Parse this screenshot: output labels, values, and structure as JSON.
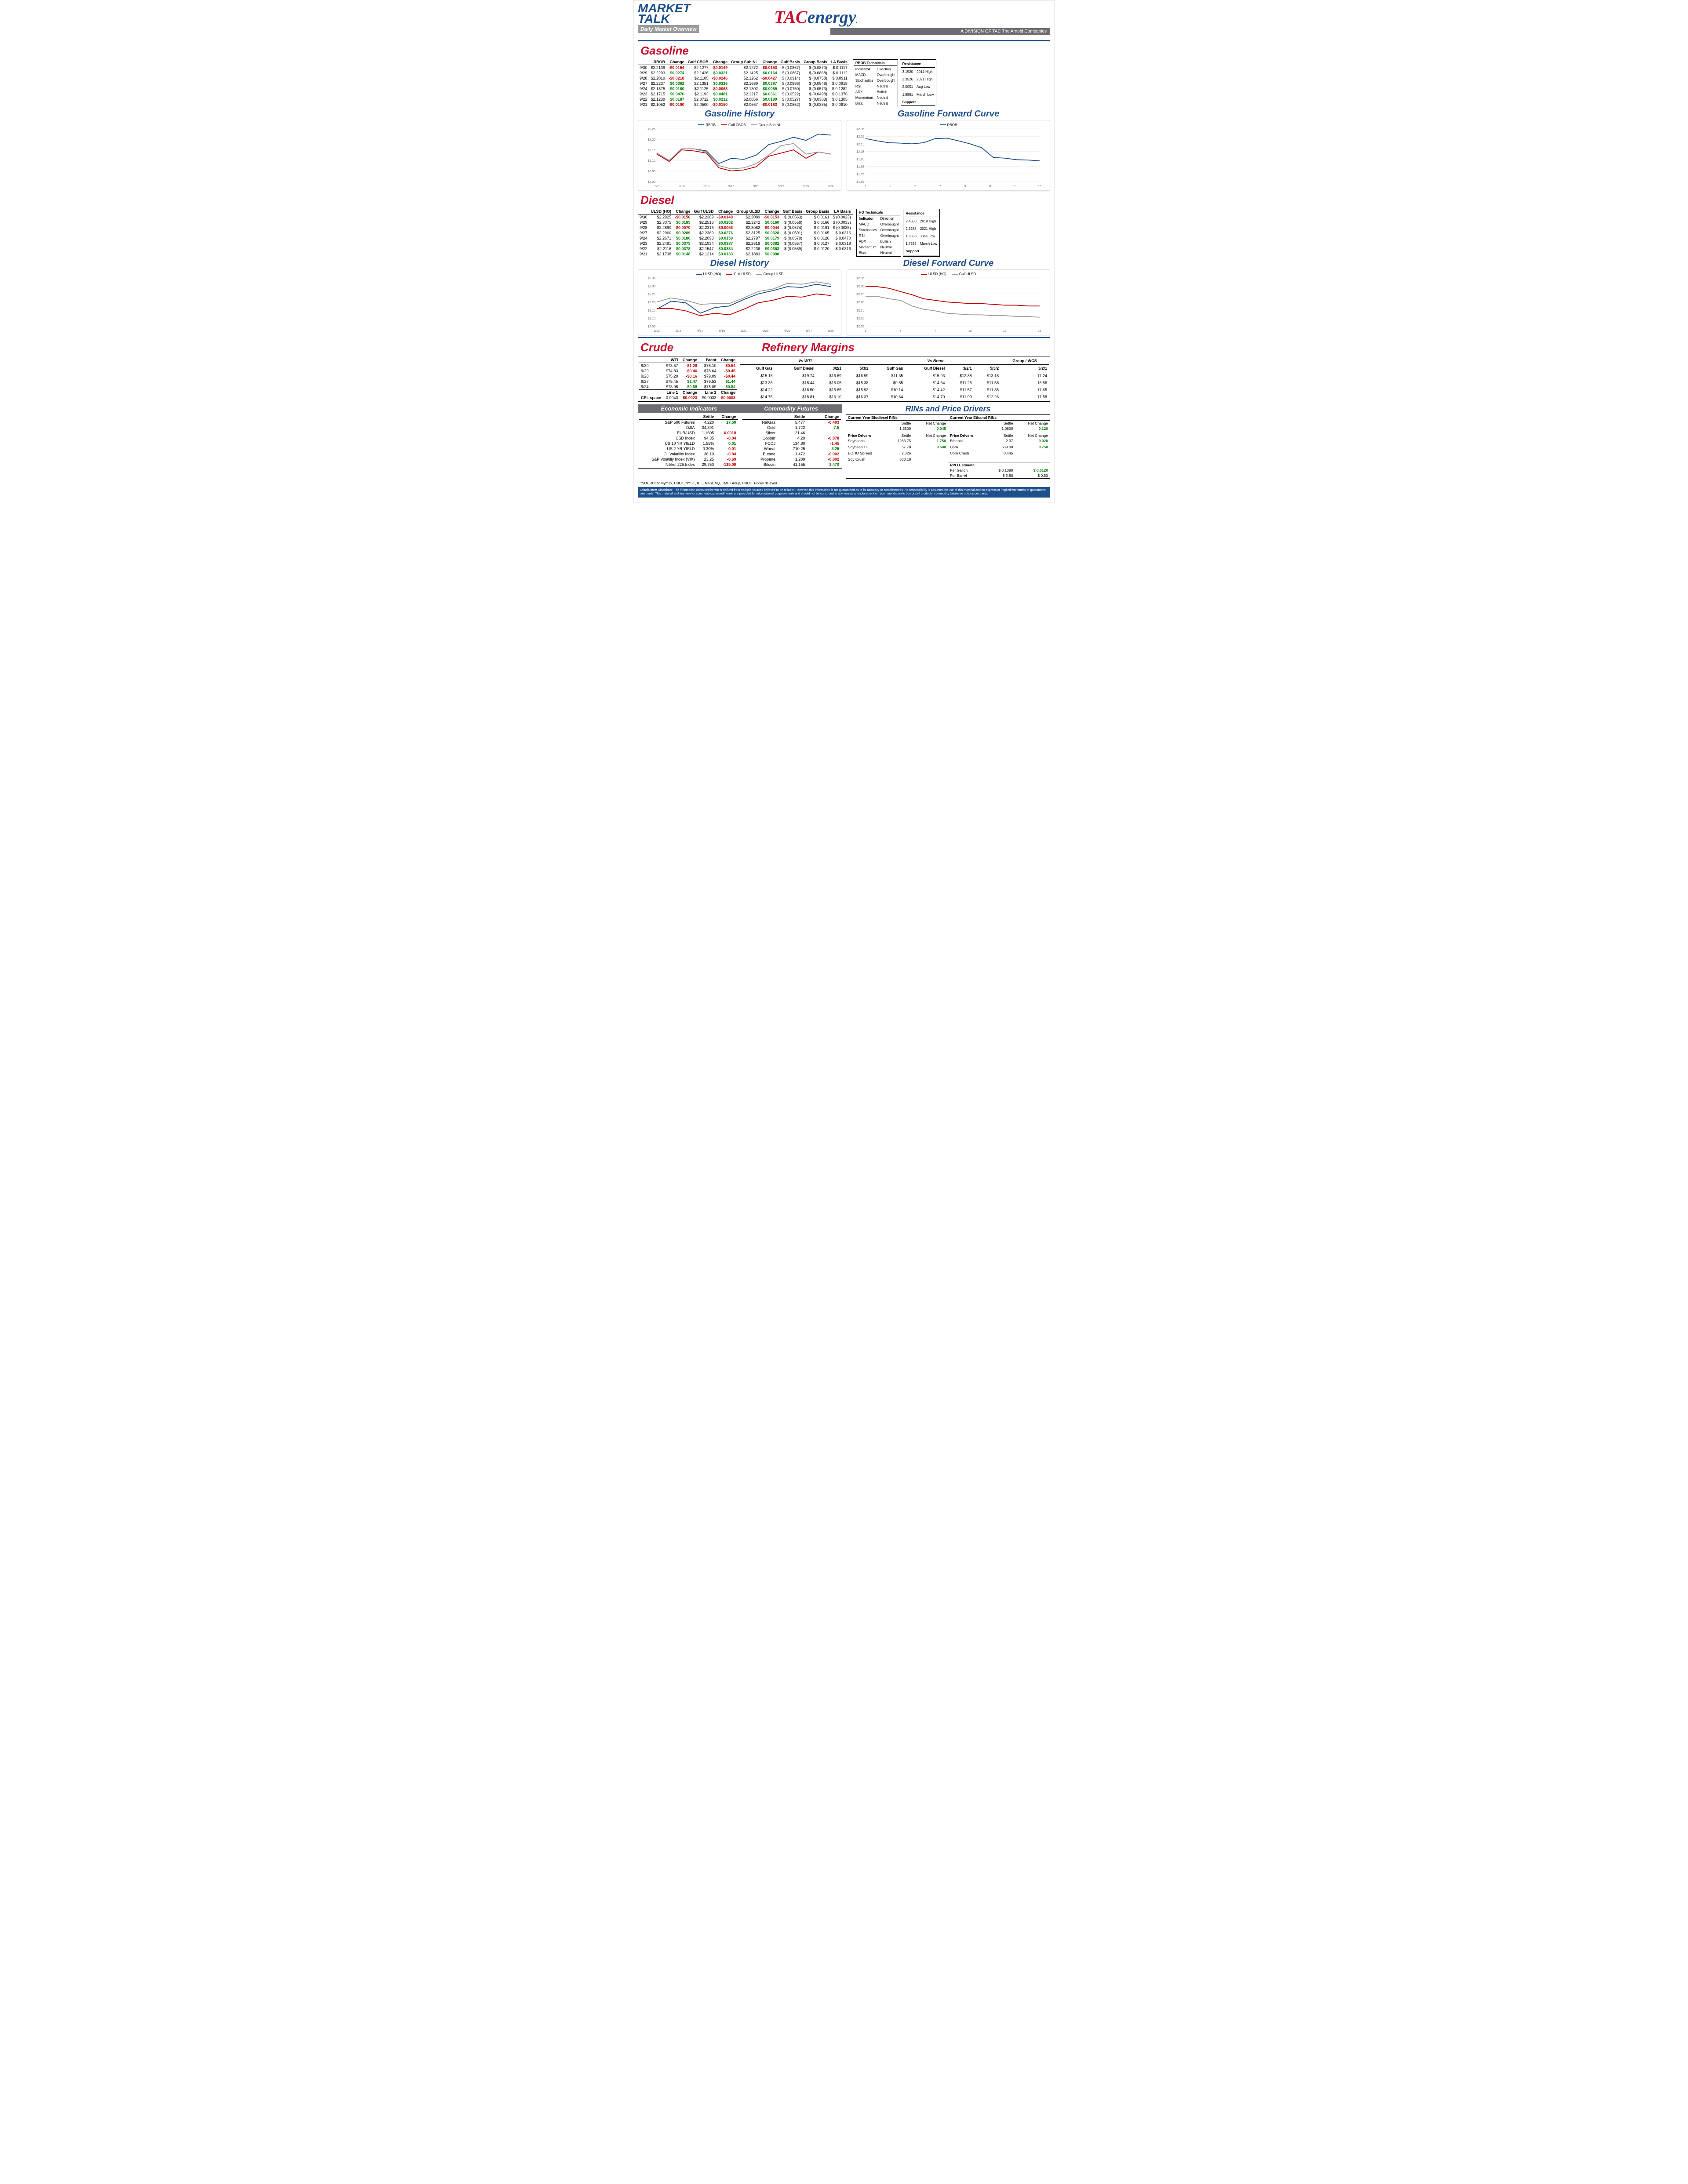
{
  "colors": {
    "red": "#c8102e",
    "blue": "#1d4f8c",
    "gray": "#9a9a9a",
    "green": "#008000",
    "neg": "#c00000"
  },
  "header": {
    "logo1": "MARKET",
    "logo2": "TALK",
    "subtitle": "Daily Market Overview",
    "company": "TACenergy",
    "division": "A DIVISION OF TAC The Arnold Companies"
  },
  "gasoline": {
    "title": "Gasoline",
    "cols": [
      "",
      "RBOB",
      "Change",
      "Gulf CBOB",
      "Change",
      "Group Sub NL",
      "Change",
      "Gulf Basis",
      "Group Basis",
      "LA Basis"
    ],
    "rows": [
      [
        "9/30",
        "$2.2139",
        "-$0.0154",
        "$2.1277",
        "-$0.0149",
        "$2.1272",
        "-$0.0153",
        "$ (0.0867)",
        "$   (0.0870)",
        "$   0.1117"
      ],
      [
        "9/29",
        "$2.2293",
        "$0.0274",
        "$2.1426",
        "$0.0321",
        "$2.1425",
        "$0.0164",
        "$ (0.0867)",
        "$   (0.0868)",
        "$   0.1112"
      ],
      [
        "9/28",
        "$2.2019",
        "-$0.0218",
        "$2.1105",
        "-$0.0246",
        "$2.1262",
        "-$0.0427",
        "$ (0.0914)",
        "$   (0.0758)",
        "$   0.0911"
      ],
      [
        "9/27",
        "$2.2237",
        "$0.0362",
        "$2.1351",
        "$0.0226",
        "$2.1689",
        "$0.0387",
        "$ (0.0886)",
        "$   (0.0548)",
        "$   0.0918"
      ],
      [
        "9/24",
        "$2.1875",
        "$0.0160",
        "$2.1125",
        "-$0.0068",
        "$2.1302",
        "$0.0085",
        "$ (0.0750)",
        "$   (0.0573)",
        "$   0.1282"
      ],
      [
        "9/23",
        "$2.1715",
        "$0.0476",
        "$2.1193",
        "$0.0481",
        "$2.1217",
        "$0.0361",
        "$ (0.0522)",
        "$   (0.0498)",
        "$   0.1376"
      ],
      [
        "9/22",
        "$2.1239",
        "$0.0187",
        "$2.0712",
        "$0.0212",
        "$2.0856",
        "$0.0189",
        "$ (0.0527)",
        "$   (0.0383)",
        "$   0.1305"
      ],
      [
        "9/21",
        "$2.1052",
        "-$0.0100",
        "$2.0500",
        "-$0.0150",
        "$2.0667",
        "-$0.0183",
        "$ (0.0552)",
        "$   (0.0385)",
        "$   0.0610"
      ]
    ],
    "tech": {
      "title": "RBOB Technicals",
      "rows": [
        [
          "Indicator",
          "Direction"
        ],
        [
          "MACD",
          "Overbought"
        ],
        [
          "Stochastics",
          "Overbought"
        ],
        [
          "RSI",
          "Neutral"
        ],
        [
          "ADX",
          "Bullish"
        ],
        [
          "Momentum",
          "Neutral"
        ],
        [
          "Bias:",
          "Neutral"
        ]
      ]
    },
    "res": {
      "title": "Resistance",
      "rows": [
        [
          "3.1520",
          "2014 High"
        ],
        [
          "2.3526",
          "2021 High"
        ],
        [
          "2.0051",
          "Aug Low"
        ],
        [
          "1.8891",
          "March Low"
        ]
      ],
      "support": "Support"
    },
    "history": {
      "title": "Gasoline History",
      "xticks": [
        "9/7",
        "9/10",
        "9/13",
        "9/16",
        "9/19",
        "9/22",
        "9/25",
        "9/28"
      ],
      "ylim": [
        2.0,
        2.25
      ],
      "yticks": [
        "$2.00",
        "$2.05",
        "$2.10",
        "$2.15",
        "$2.20",
        "$2.25"
      ],
      "series": [
        {
          "name": "RBOB",
          "color": "#1d4f8c",
          "vals": [
            2.135,
            2.1,
            2.155,
            2.155,
            2.145,
            2.085,
            2.11,
            2.105,
            2.125,
            2.175,
            2.19,
            2.21,
            2.195,
            2.225,
            2.22
          ]
        },
        {
          "name": "Gulf CBOB",
          "color": "#c00000",
          "vals": [
            2.13,
            2.095,
            2.15,
            2.145,
            2.135,
            2.065,
            2.05,
            2.055,
            2.07,
            2.12,
            2.135,
            2.15,
            2.11,
            2.14,
            2.13
          ]
        },
        {
          "name": "Group Sub NL",
          "color": "#9a9a9a",
          "vals": [
            2.135,
            2.1,
            2.155,
            2.155,
            2.14,
            2.075,
            2.06,
            2.065,
            2.085,
            2.125,
            2.17,
            2.18,
            2.13,
            2.14,
            2.13
          ]
        }
      ]
    },
    "forward": {
      "title": "Gasoline Forward Curve",
      "xticks": [
        "1",
        "3",
        "5",
        "7",
        "9",
        "11",
        "13",
        "15"
      ],
      "ylim": [
        1.65,
        2.35
      ],
      "yticks": [
        "$1.65",
        "$1.75",
        "$1.85",
        "$1.95",
        "$2.05",
        "$2.15",
        "$2.25",
        "$2.35"
      ],
      "series": [
        {
          "name": "RBOB",
          "color": "#1d4f8c",
          "vals": [
            2.22,
            2.19,
            2.165,
            2.16,
            2.15,
            2.165,
            2.22,
            2.225,
            2.19,
            2.15,
            2.1,
            1.97,
            1.96,
            1.94,
            1.935,
            1.925
          ]
        }
      ]
    }
  },
  "diesel": {
    "title": "Diesel",
    "cols": [
      "",
      "ULSD (HO)",
      "Change",
      "Gulf ULSD",
      "Change",
      "Group ULSD",
      "Change",
      "Gulf Basis",
      "Group Basis",
      "LA Basis"
    ],
    "rows": [
      [
        "9/30",
        "$2.2925",
        "-$0.0150",
        "$2.2369",
        "-$0.0149",
        "$2.3089",
        "-$0.0153",
        "$ (0.0563)",
        "$   0.0161",
        "$  (0.0023)"
      ],
      [
        "9/29",
        "$2.3075",
        "$0.0185",
        "$2.2518",
        "$0.0202",
        "$2.3242",
        "$0.0160",
        "$ (0.0558)",
        "$   0.0166",
        "$  (0.0033)"
      ],
      [
        "9/28",
        "$2.2890",
        "-$0.0070",
        "$2.2316",
        "-$0.0053",
        "$2.3082",
        "-$0.0044",
        "$ (0.0574)",
        "$   0.0191",
        "$  (0.0035)"
      ],
      [
        "9/27",
        "$2.2960",
        "$0.0289",
        "$2.2369",
        "$0.0276",
        "$2.3125",
        "$0.0328",
        "$ (0.0591)",
        "$   0.0165",
        "$   0.0316"
      ],
      [
        "9/24",
        "$2.2671",
        "$0.0180",
        "$2.2093",
        "$0.0159",
        "$2.2797",
        "$0.0179",
        "$ (0.0579)",
        "$   0.0126",
        "$   0.0470"
      ],
      [
        "9/23",
        "$2.2491",
        "$0.0375",
        "$2.1934",
        "$0.0387",
        "$2.2618",
        "$0.0382",
        "$ (0.0557)",
        "$   0.0127",
        "$   0.0318"
      ],
      [
        "9/22",
        "$2.2116",
        "$0.0378",
        "$2.1547",
        "$0.0334",
        "$2.2236",
        "$0.0353",
        "$ (0.0569)",
        "$   0.0120",
        "$   0.0316"
      ],
      [
        "9/21",
        "$2.1738",
        "$0.0148",
        "$2.1214",
        "$0.0133",
        "$2.1883",
        "$0.0098",
        "",
        "",
        ""
      ]
    ],
    "tech": {
      "title": "HO Technicals",
      "rows": [
        [
          "Indicator",
          "Direction"
        ],
        [
          "MACD",
          "Overbought"
        ],
        [
          "Stochastics",
          "Overbought"
        ],
        [
          "RSI",
          "Overbought"
        ],
        [
          "ADX",
          "Bullish"
        ],
        [
          "Momentum",
          "Neutral"
        ],
        [
          "Bias:",
          "Neutral"
        ]
      ]
    },
    "res": {
      "title": "Resistance",
      "rows": [
        [
          "2.4500",
          "2018 High"
        ],
        [
          "2.3288",
          "2021 High"
        ],
        [
          "1.9553",
          "June Low"
        ],
        [
          "1.7295",
          "March Low"
        ]
      ],
      "support": "Support"
    },
    "history": {
      "title": "Diesel History",
      "xticks": [
        "9/13",
        "9/15",
        "9/17",
        "9/19",
        "9/21",
        "9/23",
        "9/25",
        "9/27",
        "9/29"
      ],
      "ylim": [
        2.05,
        2.35
      ],
      "yticks": [
        "$2.05",
        "$2.10",
        "$2.15",
        "$2.20",
        "$2.25",
        "$2.30",
        "$2.35"
      ],
      "series": [
        {
          "name": "ULSD (HO)",
          "color": "#1d4f8c",
          "vals": [
            2.155,
            2.205,
            2.195,
            2.13,
            2.165,
            2.175,
            2.215,
            2.25,
            2.27,
            2.295,
            2.29,
            2.31,
            2.295
          ]
        },
        {
          "name": "Gulf ULSD",
          "color": "#c00000",
          "vals": [
            2.16,
            2.16,
            2.145,
            2.115,
            2.13,
            2.12,
            2.155,
            2.195,
            2.21,
            2.235,
            2.23,
            2.25,
            2.24
          ]
        },
        {
          "name": "Group ULSD",
          "color": "#9a9a9a",
          "vals": [
            2.2,
            2.225,
            2.21,
            2.185,
            2.19,
            2.19,
            2.225,
            2.265,
            2.28,
            2.315,
            2.31,
            2.325,
            2.31
          ]
        }
      ]
    },
    "forward": {
      "title": "Diesel Forward Curve",
      "xticks": [
        "1",
        "4",
        "7",
        "10",
        "13",
        "16"
      ],
      "ylim": [
        2.05,
        2.35
      ],
      "yticks": [
        "$2.05",
        "$2.10",
        "$2.15",
        "$2.20",
        "$2.25",
        "$2.30",
        "$2.35"
      ],
      "series": [
        {
          "name": "ULSD (HO)",
          "color": "#c00000",
          "vals": [
            2.295,
            2.295,
            2.285,
            2.265,
            2.245,
            2.22,
            2.21,
            2.2,
            2.195,
            2.19,
            2.19,
            2.185,
            2.18,
            2.18,
            2.175,
            2.175
          ]
        },
        {
          "name": "Gulf ULSD",
          "color": "#9a9a9a",
          "vals": [
            2.235,
            2.235,
            2.22,
            2.21,
            2.175,
            2.155,
            2.145,
            2.13,
            2.125,
            2.12,
            2.12,
            2.115,
            2.115,
            2.11,
            2.11,
            2.105
          ]
        }
      ]
    }
  },
  "crude": {
    "title": "Crude",
    "cols": [
      "",
      "WTI",
      "Change",
      "Brent",
      "Change"
    ],
    "rows": [
      [
        "9/30",
        "$73.57",
        "-$1.26",
        "$78.10",
        "-$0.54"
      ],
      [
        "9/29",
        "$74.83",
        "-$0.46",
        "$78.64",
        "-$0.45"
      ],
      [
        "9/28",
        "$75.29",
        "-$0.16",
        "$79.09",
        "-$0.44"
      ],
      [
        "9/27",
        "$75.45",
        "$1.47",
        "$79.53",
        "$1.44"
      ],
      [
        "9/24",
        "$73.98",
        "$0.68",
        "$78.09",
        "$0.84"
      ]
    ],
    "cpl": [
      "CPL space",
      "Line 1",
      "Change",
      "Line 2",
      "Change",
      "-0.0043",
      "-$0.0023",
      "-$0.0033",
      "-$0.0003"
    ]
  },
  "refinery": {
    "title": "Refinery Margins",
    "h1": "Vs WTI",
    "h2": "Vs Brent",
    "h3": "Group / WCS",
    "subs": [
      "Gulf Gas",
      "Gulf Diesel",
      "3/2/1",
      "5/3/2",
      "Gulf Gas",
      "Gulf Diesel",
      "3/2/1",
      "5/3/2",
      "3/2/1"
    ],
    "rows": [
      [
        "$15.16",
        "$19.74",
        "$16.69",
        "$16.99",
        "$11.35",
        "$15.93",
        "$12.88",
        "$13.18",
        "17.24"
      ],
      [
        "$13.35",
        "$18.44",
        "$15.05",
        "$15.38",
        "$9.55",
        "$14.64",
        "$11.25",
        "$11.58",
        "16.56"
      ],
      [
        "$14.22",
        "$18.50",
        "$15.65",
        "$15.93",
        "$10.14",
        "$14.42",
        "$11.57",
        "$11.85",
        "17.65"
      ],
      [
        "$14.75",
        "$18.81",
        "$16.10",
        "$16.37",
        "$10.64",
        "$14.70",
        "$11.99",
        "$12.26",
        "17.58"
      ]
    ]
  },
  "econ": {
    "title": "Economic Indicators",
    "cols": [
      "",
      "Settle",
      "Change"
    ],
    "rows": [
      [
        "S&P 500 Futures",
        "4,220",
        "17.50"
      ],
      [
        "DJIA",
        "34,391",
        ""
      ],
      [
        "EUR/USD",
        "1.1605",
        "-0.0018"
      ],
      [
        "USD Index",
        "94.35",
        "-0.04"
      ],
      [
        "US 10 YR YIELD",
        "1.55%",
        "0.01"
      ],
      [
        "US 2 YR YIELD",
        "0.30%",
        "-0.01"
      ],
      [
        "Oil Volatility Index",
        "36.10",
        "-0.84"
      ],
      [
        "S&P Volatiliy Index (VIX)",
        "23.25",
        "-0.69"
      ],
      [
        "Nikkei 225 Index",
        "29,750",
        "-135.00"
      ]
    ]
  },
  "commod": {
    "title": "Commodity Futures",
    "cols": [
      "",
      "Settle",
      "Change"
    ],
    "rows": [
      [
        "NatGas",
        "5.477",
        "-0.403"
      ],
      [
        "Gold",
        "1,722",
        "7.5"
      ],
      [
        "Silver",
        "21.46",
        ""
      ],
      [
        "Copper",
        "4.20",
        "-0.078"
      ],
      [
        "FCOJ",
        "134.80",
        "-1.45"
      ],
      [
        "Wheat",
        "710.25",
        "5.25"
      ],
      [
        "Butane",
        "1.472",
        "-0.002"
      ],
      [
        "Propane",
        "1.289",
        "-0.002"
      ],
      [
        "Bitcoin",
        "41,155",
        "2,470"
      ]
    ]
  },
  "rins": {
    "title": "RINs and Price Drivers",
    "bio_title": "Current Year Biodiesel RINs",
    "eth_title": "Current Year Ethanol RINs",
    "bio": {
      "settle": "1.3500",
      "chg": "0.045"
    },
    "eth": {
      "settle": "1.0800",
      "chg": "0.120"
    },
    "pd_title": "Price Drivers",
    "left": [
      [
        "Soybeans",
        "1283.75",
        "1.750"
      ],
      [
        "",
        ""
      ],
      [
        "Soybean Oil",
        "57.78",
        "0.580"
      ],
      [
        "",
        ""
      ],
      [
        "BOHO Spread",
        "2.026",
        ""
      ],
      [
        "",
        ""
      ],
      [
        "Soy Crush",
        "630.18",
        ""
      ]
    ],
    "right": [
      [
        "Ethanol",
        "2.37",
        "0.020"
      ],
      [
        "",
        ""
      ],
      [
        "Corn",
        "539.00",
        "0.750"
      ],
      [
        "",
        ""
      ],
      [
        "Corn Crush",
        "0.445",
        ""
      ],
      [
        "",
        ""
      ]
    ],
    "rvo": [
      "RVO Estimate",
      "Per Gallon",
      "$",
      "0.1380",
      "$",
      "0.0120",
      "Per Barrel",
      "$",
      "5.80",
      "$",
      "0.50"
    ]
  },
  "sources": "*SOURCES: Nymex, CBOT, NYSE, ICE, NASDAQ, CME Group, CBOE.   Prices delayed.",
  "disclaimer": "Disclaimer: The information contained herein is derived from multiple sources believed to be reliable.  However, this information is not guaranteed as to its accuracy or completeness. No responsibility is assumed for use of this material and no express or implied warranties or guarantees are made. This material and any view or comment expressed herein are provided for informational purposes only and should not be construed in any way as an inducement or recommendation to buy or sell products, commodity futures or options contracts."
}
